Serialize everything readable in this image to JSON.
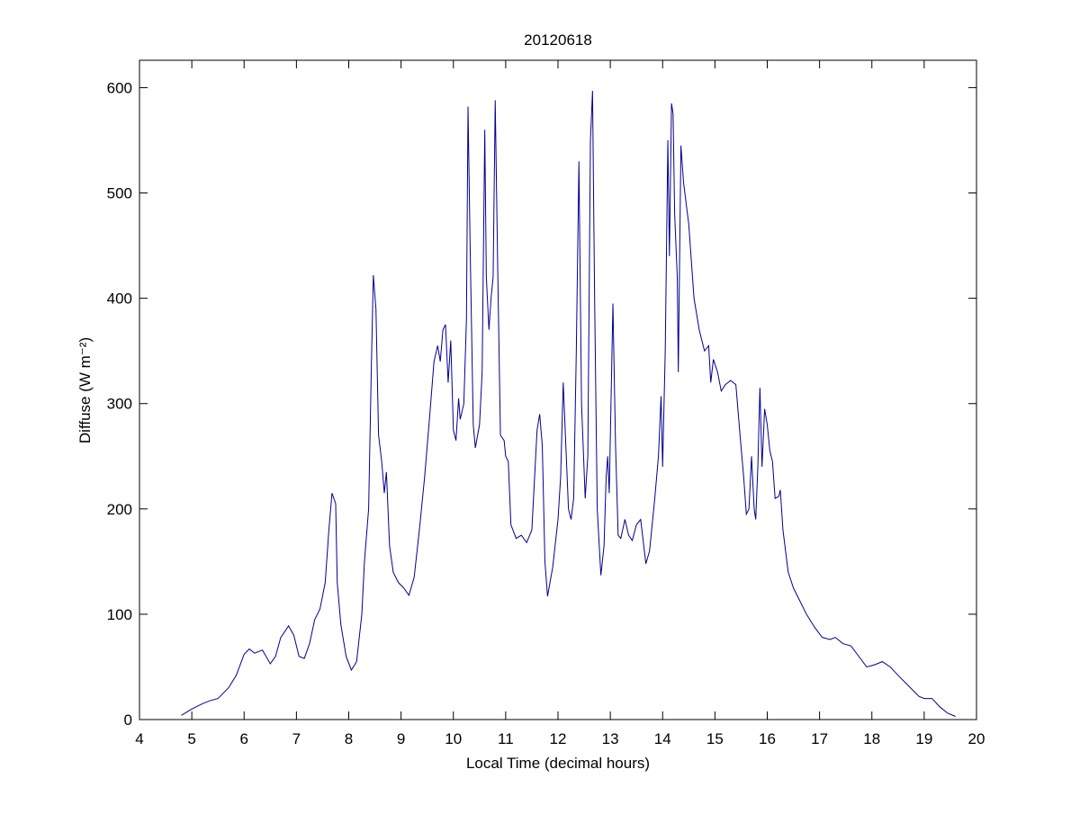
{
  "chart_data": {
    "type": "line",
    "title": "20120618",
    "x_label": "Local Time (decimal hours)",
    "y_label": "Diffuse (W m⁻²)",
    "xlim": [
      4,
      20
    ],
    "xticks": [
      4,
      5,
      6,
      7,
      8,
      9,
      10,
      11,
      12,
      13,
      14,
      15,
      16,
      17,
      18,
      19,
      20
    ],
    "ylim": [
      0,
      626
    ],
    "yticks": [
      0,
      100,
      200,
      300,
      400,
      500,
      600
    ],
    "grid": false,
    "x": [
      4.8,
      5.0,
      5.2,
      5.35,
      5.5,
      5.7,
      5.85,
      6.0,
      6.1,
      6.2,
      6.35,
      6.5,
      6.6,
      6.7,
      6.85,
      6.95,
      7.05,
      7.15,
      7.25,
      7.35,
      7.45,
      7.55,
      7.62,
      7.68,
      7.75,
      7.78,
      7.85,
      7.95,
      8.05,
      8.15,
      8.25,
      8.3,
      8.38,
      8.43,
      8.47,
      8.52,
      8.57,
      8.63,
      8.68,
      8.72,
      8.78,
      8.85,
      8.95,
      9.05,
      9.15,
      9.25,
      9.35,
      9.45,
      9.55,
      9.63,
      9.7,
      9.75,
      9.8,
      9.85,
      9.9,
      9.95,
      10.0,
      10.05,
      10.1,
      10.13,
      10.2,
      10.25,
      10.28,
      10.32,
      10.38,
      10.42,
      10.5,
      10.55,
      10.6,
      10.63,
      10.68,
      10.72,
      10.76,
      10.8,
      10.85,
      10.9,
      10.97,
      11.0,
      11.05,
      11.1,
      11.2,
      11.3,
      11.4,
      11.5,
      11.6,
      11.65,
      11.7,
      11.75,
      11.8,
      11.9,
      12.0,
      12.05,
      12.1,
      12.15,
      12.2,
      12.25,
      12.3,
      12.35,
      12.4,
      12.45,
      12.52,
      12.57,
      12.62,
      12.66,
      12.7,
      12.75,
      12.82,
      12.88,
      12.92,
      12.95,
      12.98,
      13.05,
      13.1,
      13.15,
      13.2,
      13.28,
      13.35,
      13.42,
      13.5,
      13.58,
      13.68,
      13.75,
      13.85,
      13.92,
      13.97,
      14.0,
      14.05,
      14.1,
      14.13,
      14.17,
      14.2,
      14.23,
      14.28,
      14.3,
      14.35,
      14.4,
      14.5,
      14.6,
      14.7,
      14.8,
      14.88,
      14.92,
      14.97,
      15.05,
      15.12,
      15.2,
      15.3,
      15.4,
      15.48,
      15.55,
      15.6,
      15.65,
      15.7,
      15.75,
      15.78,
      15.82,
      15.86,
      15.9,
      15.95,
      16.0,
      16.05,
      16.1,
      16.15,
      16.22,
      16.25,
      16.3,
      16.4,
      16.5,
      16.6,
      16.75,
      16.9,
      17.05,
      17.2,
      17.3,
      17.45,
      17.6,
      17.75,
      17.9,
      18.05,
      18.2,
      18.35,
      18.5,
      18.7,
      18.9,
      19.0,
      19.15,
      19.3,
      19.45,
      19.6
    ],
    "series": [
      {
        "color": "#00008f",
        "values": [
          4,
          10,
          15,
          18,
          20,
          30,
          42,
          62,
          67,
          63,
          66,
          53,
          60,
          78,
          89,
          80,
          60,
          58,
          72,
          95,
          105,
          130,
          180,
          215,
          205,
          130,
          90,
          60,
          47,
          55,
          100,
          150,
          200,
          330,
          422,
          390,
          270,
          245,
          215,
          235,
          165,
          140,
          130,
          125,
          118,
          135,
          180,
          230,
          290,
          340,
          355,
          340,
          370,
          375,
          320,
          360,
          275,
          265,
          305,
          285,
          300,
          380,
          582,
          450,
          280,
          258,
          280,
          330,
          560,
          420,
          370,
          400,
          420,
          588,
          420,
          270,
          265,
          250,
          245,
          185,
          172,
          175,
          168,
          180,
          275,
          290,
          260,
          150,
          117,
          145,
          190,
          230,
          320,
          260,
          200,
          190,
          210,
          350,
          530,
          300,
          210,
          250,
          550,
          597,
          400,
          200,
          137,
          165,
          230,
          250,
          215,
          395,
          260,
          175,
          172,
          190,
          175,
          170,
          185,
          190,
          148,
          160,
          210,
          250,
          307,
          240,
          350,
          550,
          440,
          585,
          575,
          480,
          420,
          330,
          545,
          510,
          470,
          400,
          370,
          350,
          355,
          320,
          342,
          330,
          312,
          318,
          322,
          318,
          270,
          230,
          195,
          200,
          250,
          200,
          190,
          240,
          315,
          240,
          295,
          280,
          255,
          245,
          210,
          212,
          218,
          180,
          140,
          125,
          115,
          100,
          88,
          78,
          76,
          78,
          72,
          70,
          60,
          50,
          52,
          55,
          50,
          42,
          32,
          22,
          20,
          20,
          12,
          6,
          3
        ]
      }
    ]
  }
}
